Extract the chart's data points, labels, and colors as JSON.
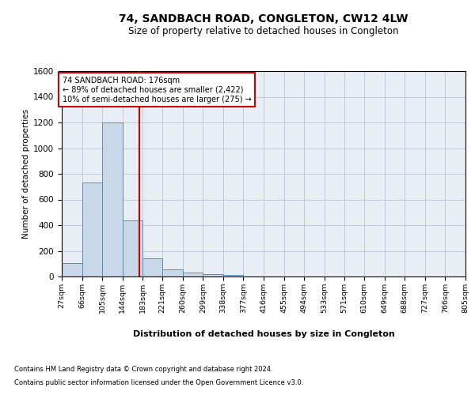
{
  "title": "74, SANDBACH ROAD, CONGLETON, CW12 4LW",
  "subtitle": "Size of property relative to detached houses in Congleton",
  "xlabel_bottom": "Distribution of detached houses by size in Congleton",
  "ylabel": "Number of detached properties",
  "footnote1": "Contains HM Land Registry data © Crown copyright and database right 2024.",
  "footnote2": "Contains public sector information licensed under the Open Government Licence v3.0.",
  "bins": [
    27,
    66,
    105,
    144,
    183,
    221,
    260,
    299,
    338,
    377,
    416,
    455,
    494,
    533,
    571,
    610,
    649,
    688,
    727,
    766,
    805
  ],
  "bar_heights": [
    105,
    730,
    1200,
    435,
    140,
    55,
    30,
    20,
    10,
    0,
    0,
    0,
    0,
    0,
    0,
    0,
    0,
    0,
    0,
    0
  ],
  "bar_color": "#c8d8e8",
  "bar_edge_color": "#5b8db8",
  "property_size": 176,
  "property_label": "74 SANDBACH ROAD: 176sqm",
  "annotation_line1": "← 89% of detached houses are smaller (2,422)",
  "annotation_line2": "10% of semi-detached houses are larger (275) →",
  "vline_color": "#cc0000",
  "annotation_box_color": "#cc0000",
  "ylim": [
    0,
    1600
  ],
  "yticks": [
    0,
    200,
    400,
    600,
    800,
    1000,
    1200,
    1400,
    1600
  ],
  "grid_color": "#c0c8d8",
  "background_color": "#e8eef4"
}
